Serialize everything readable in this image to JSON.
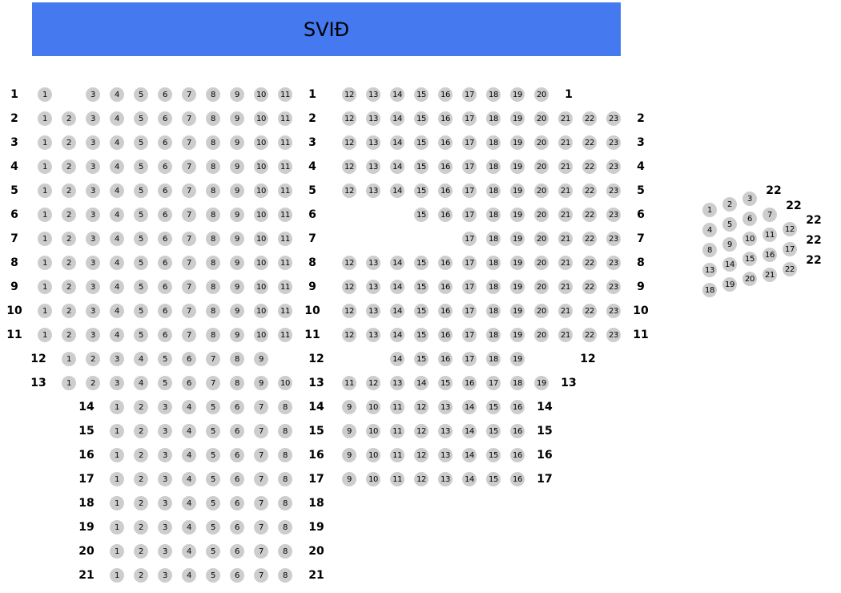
{
  "stage": {
    "label": "SVIÐ"
  },
  "seat_color": "#cdcdcd",
  "stage_color": "#4479ef",
  "rows": [
    {
      "label": "1",
      "left": [
        1,
        3,
        4,
        5,
        6,
        7,
        8,
        9,
        10,
        11
      ],
      "right": [
        12,
        13,
        14,
        15,
        16,
        17,
        18,
        19,
        20
      ]
    },
    {
      "label": "2",
      "left": [
        1,
        2,
        3,
        4,
        5,
        6,
        7,
        8,
        9,
        10,
        11
      ],
      "right": [
        12,
        13,
        14,
        15,
        16,
        17,
        18,
        19,
        20,
        21,
        22,
        23
      ]
    },
    {
      "label": "3",
      "left": [
        1,
        2,
        3,
        4,
        5,
        6,
        7,
        8,
        9,
        10,
        11
      ],
      "right": [
        12,
        13,
        14,
        15,
        16,
        17,
        18,
        19,
        20,
        21,
        22,
        23
      ]
    },
    {
      "label": "4",
      "left": [
        1,
        2,
        3,
        4,
        5,
        6,
        7,
        8,
        9,
        10,
        11
      ],
      "right": [
        12,
        13,
        14,
        15,
        16,
        17,
        18,
        19,
        20,
        21,
        22,
        23
      ]
    },
    {
      "label": "5",
      "left": [
        1,
        2,
        3,
        4,
        5,
        6,
        7,
        8,
        9,
        10,
        11
      ],
      "right": [
        12,
        13,
        14,
        15,
        16,
        17,
        18,
        19,
        20,
        21,
        22,
        23
      ]
    },
    {
      "label": "6",
      "left": [
        1,
        2,
        3,
        4,
        5,
        6,
        7,
        8,
        9,
        10,
        11
      ],
      "right": [
        15,
        16,
        17,
        18,
        19,
        20,
        21,
        22,
        23
      ]
    },
    {
      "label": "7",
      "left": [
        1,
        2,
        3,
        4,
        5,
        6,
        7,
        8,
        9,
        10,
        11
      ],
      "right": [
        17,
        18,
        19,
        20,
        21,
        22,
        23
      ]
    },
    {
      "label": "8",
      "left": [
        1,
        2,
        3,
        4,
        5,
        6,
        7,
        8,
        9,
        10,
        11
      ],
      "right": [
        12,
        13,
        14,
        15,
        16,
        17,
        18,
        19,
        20,
        21,
        22,
        23
      ]
    },
    {
      "label": "9",
      "left": [
        1,
        2,
        3,
        4,
        5,
        6,
        7,
        8,
        9,
        10,
        11
      ],
      "right": [
        12,
        13,
        14,
        15,
        16,
        17,
        18,
        19,
        20,
        21,
        22,
        23
      ]
    },
    {
      "label": "10",
      "left": [
        1,
        2,
        3,
        4,
        5,
        6,
        7,
        8,
        9,
        10,
        11
      ],
      "right": [
        12,
        13,
        14,
        15,
        16,
        17,
        18,
        19,
        20,
        21,
        22,
        23
      ]
    },
    {
      "label": "11",
      "left": [
        1,
        2,
        3,
        4,
        5,
        6,
        7,
        8,
        9,
        10,
        11
      ],
      "right": [
        12,
        13,
        14,
        15,
        16,
        17,
        18,
        19,
        20,
        21,
        22,
        23
      ]
    },
    {
      "label": "12",
      "left": [
        1,
        2,
        3,
        4,
        5,
        6,
        7,
        8,
        9
      ],
      "right": [
        14,
        15,
        16,
        17,
        18,
        19
      ]
    },
    {
      "label": "13",
      "left": [
        1,
        2,
        3,
        4,
        5,
        6,
        7,
        8,
        9,
        10
      ],
      "right": [
        11,
        12,
        13,
        14,
        15,
        16,
        17,
        18,
        19
      ]
    },
    {
      "label": "14",
      "left": [
        1,
        2,
        3,
        4,
        5,
        6,
        7,
        8
      ],
      "right": [
        9,
        10,
        11,
        12,
        13,
        14,
        15,
        16
      ]
    },
    {
      "label": "15",
      "left": [
        1,
        2,
        3,
        4,
        5,
        6,
        7,
        8
      ],
      "right": [
        9,
        10,
        11,
        12,
        13,
        14,
        15,
        16
      ]
    },
    {
      "label": "16",
      "left": [
        1,
        2,
        3,
        4,
        5,
        6,
        7,
        8
      ],
      "right": [
        9,
        10,
        11,
        12,
        13,
        14,
        15,
        16
      ]
    },
    {
      "label": "17",
      "left": [
        1,
        2,
        3,
        4,
        5,
        6,
        7,
        8
      ],
      "right": [
        9,
        10,
        11,
        12,
        13,
        14,
        15,
        16
      ]
    },
    {
      "label": "18",
      "left": [
        1,
        2,
        3,
        4,
        5,
        6,
        7,
        8
      ],
      "right": []
    },
    {
      "label": "19",
      "left": [
        1,
        2,
        3,
        4,
        5,
        6,
        7,
        8
      ],
      "right": []
    },
    {
      "label": "20",
      "left": [
        1,
        2,
        3,
        4,
        5,
        6,
        7,
        8
      ],
      "right": []
    },
    {
      "label": "21",
      "left": [
        1,
        2,
        3,
        4,
        5,
        6,
        7,
        8
      ],
      "right": []
    }
  ],
  "balcony": {
    "seats": [
      1,
      2,
      3,
      4,
      5,
      6,
      7,
      8,
      9,
      10,
      11,
      12,
      13,
      14,
      15,
      16,
      17,
      18,
      19,
      20,
      21,
      22
    ],
    "row_labels": [
      "22",
      "22",
      "22",
      "22",
      "22"
    ]
  }
}
